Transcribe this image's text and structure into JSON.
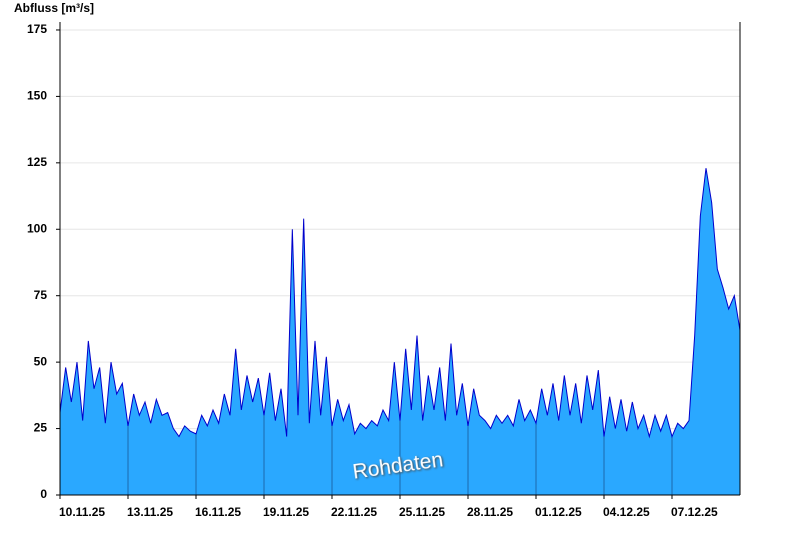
{
  "chart_data": {
    "type": "area",
    "ylabel": "Abfluss [m³/s]",
    "annotation": "Rohdaten",
    "x": [
      0,
      0.25,
      0.5,
      0.75,
      1,
      1.25,
      1.5,
      1.75,
      2,
      2.25,
      2.5,
      2.75,
      3,
      3.25,
      3.5,
      3.75,
      4,
      4.25,
      4.5,
      4.75,
      5,
      5.25,
      5.5,
      5.75,
      6,
      6.25,
      6.5,
      6.75,
      7,
      7.25,
      7.5,
      7.75,
      8,
      8.25,
      8.5,
      8.75,
      9,
      9.25,
      9.5,
      9.75,
      10,
      10.25,
      10.5,
      10.75,
      11,
      11.25,
      11.5,
      11.75,
      12,
      12.25,
      12.5,
      12.75,
      13,
      13.25,
      13.5,
      13.75,
      14,
      14.25,
      14.5,
      14.75,
      15,
      15.25,
      15.5,
      15.75,
      16,
      16.25,
      16.5,
      16.75,
      17,
      17.25,
      17.5,
      17.75,
      18,
      18.25,
      18.5,
      18.75,
      19,
      19.25,
      19.5,
      19.75,
      20,
      20.25,
      20.5,
      20.75,
      21,
      21.25,
      21.5,
      21.75,
      22,
      22.25,
      22.5,
      22.75,
      23,
      23.25,
      23.5,
      23.75,
      24,
      24.25,
      24.5,
      24.75,
      25,
      25.25,
      25.5,
      25.75,
      26,
      26.25,
      26.5,
      26.75,
      27,
      27.25,
      27.5,
      27.75,
      28,
      28.25,
      28.5,
      28.75,
      29,
      29.25,
      29.5,
      29.75,
      30
    ],
    "series": [
      {
        "name": "Abfluss",
        "color": "#2aa8ff",
        "line_color": "#0000cc",
        "values": [
          31,
          48,
          35,
          50,
          28,
          58,
          40,
          48,
          27,
          50,
          38,
          42,
          26,
          38,
          30,
          35,
          27,
          36,
          30,
          31,
          25,
          22,
          26,
          24,
          23,
          30,
          26,
          32,
          27,
          38,
          30,
          55,
          32,
          45,
          35,
          44,
          30,
          46,
          28,
          40,
          22,
          100,
          30,
          104,
          27,
          58,
          30,
          52,
          26,
          36,
          28,
          34,
          23,
          27,
          25,
          28,
          26,
          32,
          28,
          50,
          28,
          55,
          32,
          60,
          28,
          45,
          32,
          48,
          28,
          57,
          30,
          42,
          26,
          40,
          30,
          28,
          25,
          30,
          27,
          30,
          26,
          36,
          28,
          32,
          27,
          40,
          30,
          42,
          28,
          45,
          30,
          42,
          27,
          45,
          32,
          47,
          22,
          37,
          25,
          36,
          24,
          35,
          25,
          30,
          22,
          30,
          24,
          30,
          22,
          27,
          25,
          28,
          60,
          105,
          123,
          110,
          85,
          78,
          70,
          75,
          62
        ]
      }
    ],
    "xlim": [
      0,
      30
    ],
    "xticks": [
      {
        "value": 0,
        "label": "10.11.25"
      },
      {
        "value": 3,
        "label": "13.11.25"
      },
      {
        "value": 6,
        "label": "16.11.25"
      },
      {
        "value": 9,
        "label": "19.11.25"
      },
      {
        "value": 12,
        "label": "22.11.25"
      },
      {
        "value": 15,
        "label": "25.11.25"
      },
      {
        "value": 18,
        "label": "28.11.25"
      },
      {
        "value": 21,
        "label": "01.12.25"
      },
      {
        "value": 24,
        "label": "04.12.25"
      },
      {
        "value": 27,
        "label": "07.12.25"
      }
    ],
    "ylim": [
      0,
      178
    ],
    "yticks": [
      0,
      25,
      50,
      75,
      100,
      125,
      150,
      175
    ],
    "grid": true
  }
}
